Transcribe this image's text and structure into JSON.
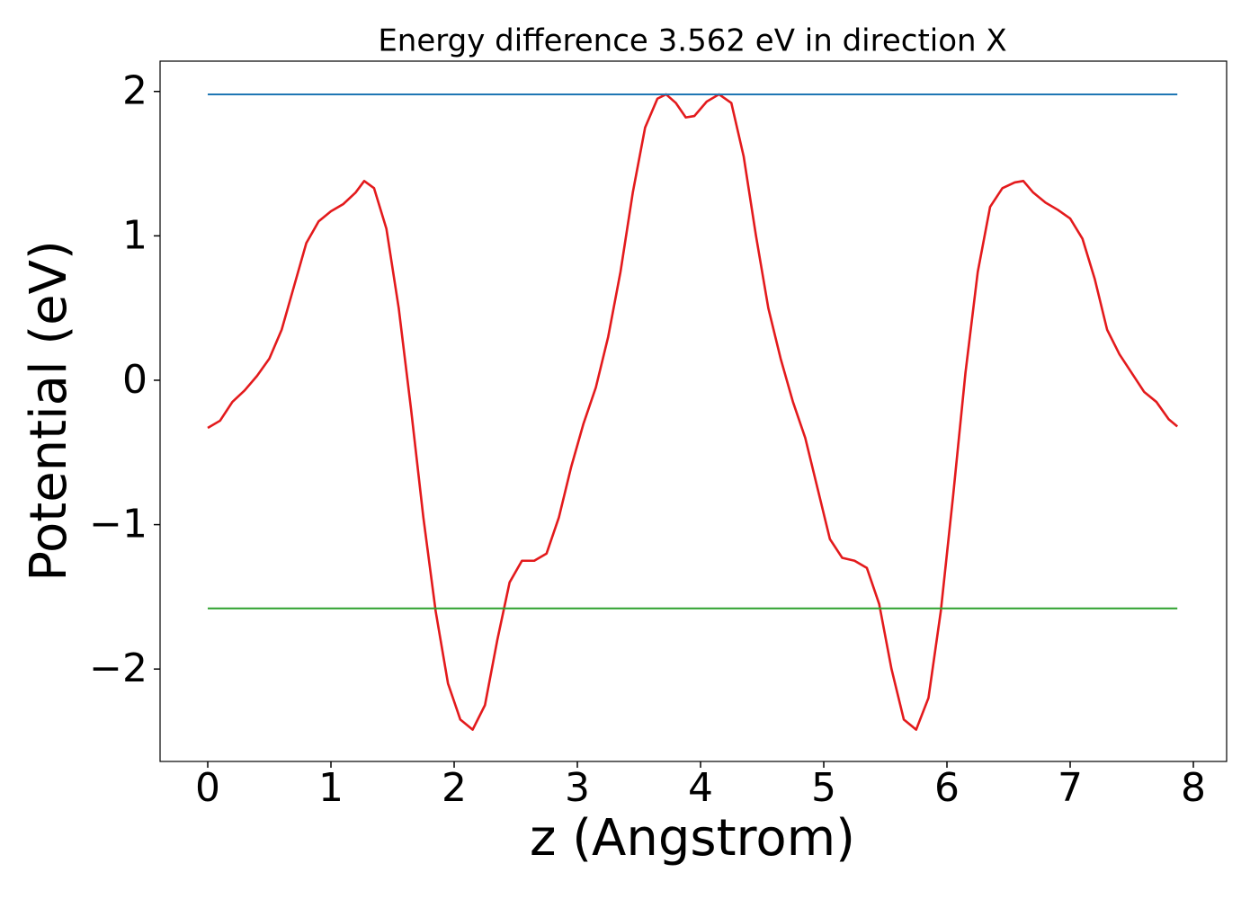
{
  "chart_data": {
    "type": "line",
    "title": "Energy difference 3.562 eV in direction X",
    "xlabel": "z (Angstrom)",
    "ylabel": "Potential (eV)",
    "xlim": [
      -0.387,
      8.27
    ],
    "ylim": [
      -2.64,
      2.21
    ],
    "xticks": [
      0,
      1,
      2,
      3,
      4,
      5,
      6,
      7,
      8
    ],
    "yticks": [
      {
        "value": -2,
        "label": "−2"
      },
      {
        "value": -1,
        "label": "−1"
      },
      0,
      1,
      2
    ],
    "grid": false,
    "series": [
      {
        "color": "#e31a1c",
        "x": [
          0,
          0.1,
          0.2,
          0.3,
          0.4,
          0.5,
          0.6,
          0.7,
          0.8,
          0.9,
          1.0,
          1.1,
          1.2,
          1.27,
          1.35,
          1.45,
          1.55,
          1.65,
          1.75,
          1.85,
          1.95,
          2.05,
          2.15,
          2.25,
          2.35,
          2.45,
          2.55,
          2.65,
          2.75,
          2.85,
          2.95,
          3.05,
          3.15,
          3.25,
          3.35,
          3.45,
          3.55,
          3.65,
          3.72,
          3.8,
          3.88,
          3.95,
          4.05,
          4.15,
          4.25,
          4.35,
          4.45,
          4.55,
          4.65,
          4.75,
          4.85,
          4.95,
          5.05,
          5.15,
          5.25,
          5.35,
          5.45,
          5.55,
          5.65,
          5.75,
          5.85,
          5.95,
          6.05,
          6.15,
          6.25,
          6.35,
          6.45,
          6.55,
          6.62,
          6.7,
          6.8,
          6.9,
          7.0,
          7.1,
          7.2,
          7.3,
          7.4,
          7.5,
          7.6,
          7.7,
          7.8,
          7.87
        ],
        "values": [
          -0.33,
          -0.28,
          -0.15,
          -0.07,
          0.03,
          0.15,
          0.35,
          0.65,
          0.95,
          1.1,
          1.17,
          1.22,
          1.3,
          1.38,
          1.33,
          1.05,
          0.5,
          -0.2,
          -0.95,
          -1.6,
          -2.1,
          -2.35,
          -2.42,
          -2.25,
          -1.8,
          -1.4,
          -1.25,
          -1.25,
          -1.2,
          -0.95,
          -0.6,
          -0.3,
          -0.05,
          0.3,
          0.75,
          1.3,
          1.75,
          1.95,
          1.98,
          1.92,
          1.82,
          1.83,
          1.93,
          1.98,
          1.92,
          1.55,
          1.0,
          0.5,
          0.15,
          -0.15,
          -0.4,
          -0.75,
          -1.1,
          -1.23,
          -1.25,
          -1.3,
          -1.55,
          -2.0,
          -2.35,
          -2.42,
          -2.2,
          -1.6,
          -0.8,
          0.05,
          0.75,
          1.2,
          1.33,
          1.37,
          1.38,
          1.3,
          1.23,
          1.18,
          1.12,
          0.98,
          0.7,
          0.35,
          0.18,
          0.05,
          -0.08,
          -0.15,
          -0.27,
          -0.32
        ]
      },
      {
        "color": "#1f77b4",
        "x": [
          0,
          7.87
        ],
        "values": [
          1.98,
          1.98
        ]
      },
      {
        "color": "#2ca02c",
        "x": [
          0,
          7.87
        ],
        "values": [
          -1.58,
          -1.58
        ]
      }
    ]
  }
}
